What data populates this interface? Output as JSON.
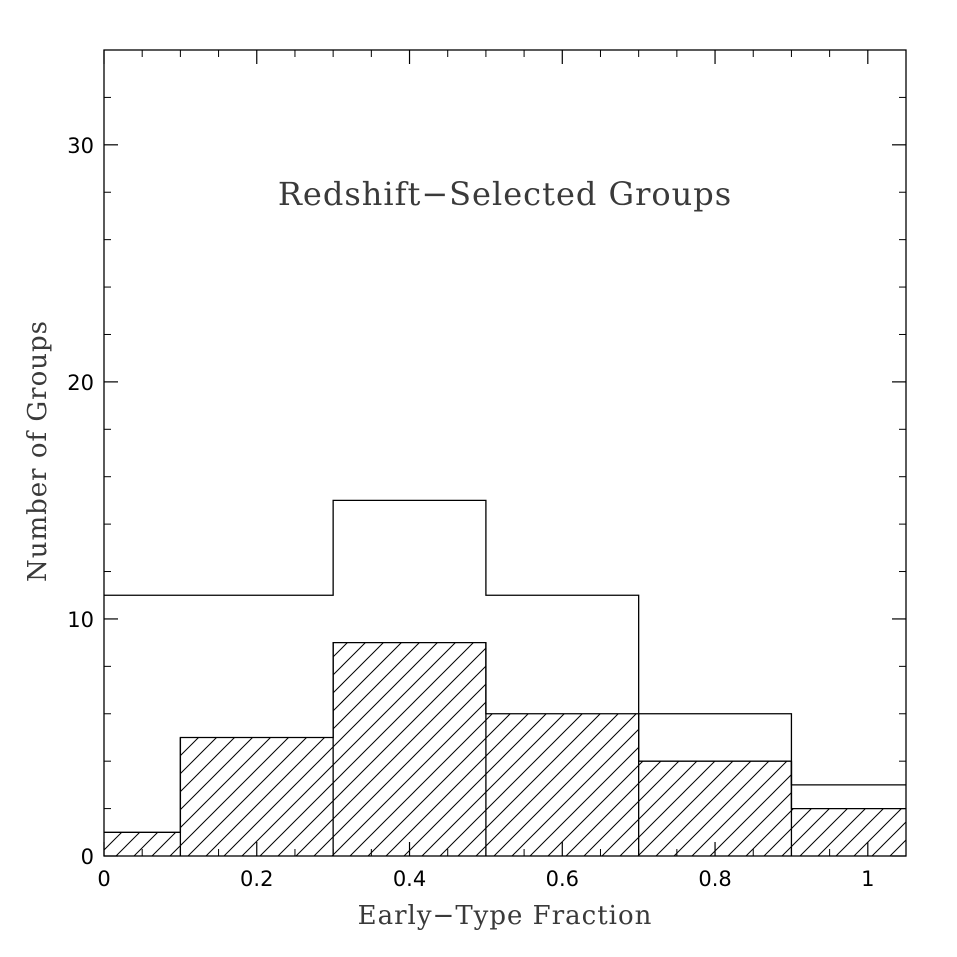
{
  "chart_data": {
    "type": "bar",
    "title": "",
    "annotation": "Redshift−Selected Groups",
    "xlabel": "Early−Type Fraction",
    "ylabel": "Number of Groups",
    "xlim": [
      0,
      1.05
    ],
    "ylim": [
      0,
      34
    ],
    "xticks": [
      0,
      0.2,
      0.4,
      0.6,
      0.8,
      1
    ],
    "xtick_labels": [
      "0",
      "0.2",
      "0.4",
      "0.6",
      "0.8",
      "1"
    ],
    "yticks": [
      0,
      10,
      20,
      30
    ],
    "ytick_labels": [
      "0",
      "10",
      "20",
      "30"
    ],
    "grid": false,
    "series": [
      {
        "style": "open-outline",
        "bins": [
          {
            "x0": 0.0,
            "x1": 0.3,
            "value": 11
          },
          {
            "x0": 0.3,
            "x1": 0.5,
            "value": 15
          },
          {
            "x0": 0.5,
            "x1": 0.7,
            "value": 11
          },
          {
            "x0": 0.7,
            "x1": 0.9,
            "value": 6
          },
          {
            "x0": 0.9,
            "x1": 1.05,
            "value": 3
          }
        ]
      },
      {
        "style": "hatched",
        "bins": [
          {
            "x0": 0.0,
            "x1": 0.1,
            "value": 1
          },
          {
            "x0": 0.1,
            "x1": 0.3,
            "value": 5
          },
          {
            "x0": 0.3,
            "x1": 0.5,
            "value": 9
          },
          {
            "x0": 0.5,
            "x1": 0.7,
            "value": 6
          },
          {
            "x0": 0.7,
            "x1": 0.9,
            "value": 4
          },
          {
            "x0": 0.9,
            "x1": 1.05,
            "value": 2
          }
        ]
      }
    ]
  }
}
